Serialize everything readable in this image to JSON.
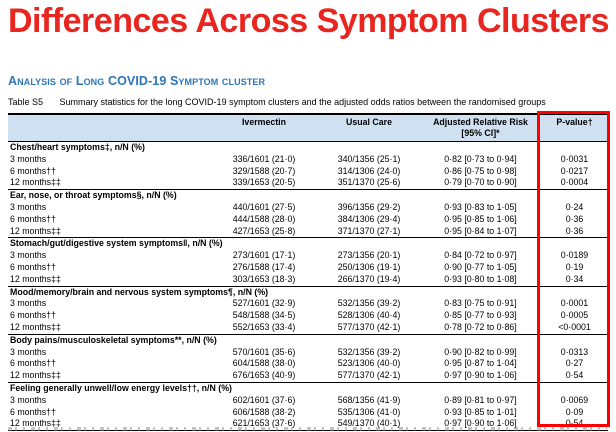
{
  "page": {
    "title": "Differences Across Symptom Clusters",
    "section_heading": "Analysis of Long COVID-19 Symptom cluster",
    "caption_label": "Table S5",
    "caption_text": "Summary statistics for the long COVID-19 symptom clusters and the adjusted odds ratios between the randomised groups"
  },
  "colors": {
    "title_red": "#e8251f",
    "heading_blue": "#2e75b6",
    "header_row_bg": "#cfe1f1",
    "highlight_box_red": "#fe0000"
  },
  "table": {
    "columns": [
      "",
      "Ivermectin",
      "Usual Care",
      "Adjusted Relative Risk [95% CI]*",
      "P-value†"
    ],
    "sections": [
      {
        "label": "Chest/heart symptoms‡, n/N (%)",
        "rows": [
          {
            "label": "3 months",
            "ivermectin": "336/1601 (21·0)",
            "usual_care": "340/1356 (25·1)",
            "arr": "0·82 [0·73 to 0·94]",
            "p": "0·0031"
          },
          {
            "label": "6 months††",
            "ivermectin": "329/1588 (20·7)",
            "usual_care": "314/1306 (24·0)",
            "arr": "0·86 [0·75 to 0·98]",
            "p": "0·0217"
          },
          {
            "label": "12 months‡‡",
            "ivermectin": "339/1653 (20·5)",
            "usual_care": "351/1370 (25·6)",
            "arr": "0·79 [0·70 to 0·90]",
            "p": "0·0004"
          }
        ]
      },
      {
        "label": "Ear, nose, or throat symptoms§, n/N (%)",
        "rows": [
          {
            "label": "3 months",
            "ivermectin": "440/1601 (27·5)",
            "usual_care": "396/1356 (29·2)",
            "arr": "0·93 [0·83 to 1·05]",
            "p": "0·24"
          },
          {
            "label": "6 months††",
            "ivermectin": "444/1588 (28·0)",
            "usual_care": "384/1306 (29·4)",
            "arr": "0·95 [0·85 to 1·06]",
            "p": "0·36"
          },
          {
            "label": "12 months‡‡",
            "ivermectin": "427/1653 (25·8)",
            "usual_care": "371/1370 (27·1)",
            "arr": "0·95 [0·84 to 1·07]",
            "p": "0·36"
          }
        ]
      },
      {
        "label": "Stomach/gut/digestive system symptoms‖, n/N (%)",
        "rows": [
          {
            "label": "3 months",
            "ivermectin": "273/1601 (17·1)",
            "usual_care": "273/1356 (20·1)",
            "arr": "0·84 [0·72 to 0·97]",
            "p": "0·0189"
          },
          {
            "label": "6 months††",
            "ivermectin": "276/1588 (17·4)",
            "usual_care": "250/1306 (19·1)",
            "arr": "0·90 [0·77 to 1·05]",
            "p": "0·19"
          },
          {
            "label": "12 months‡‡",
            "ivermectin": "303/1653 (18·3)",
            "usual_care": "266/1370 (19·4)",
            "arr": "0·93 [0·80 to 1·08]",
            "p": "0·34"
          }
        ]
      },
      {
        "label": "Mood/memory/brain and nervous system symptoms¶, n/N (%)",
        "rows": [
          {
            "label": "3 months",
            "ivermectin": "527/1601 (32·9)",
            "usual_care": "532/1356 (39·2)",
            "arr": "0·83 [0·75 to 0·91]",
            "p": "0·0001"
          },
          {
            "label": "6 months††",
            "ivermectin": "548/1588 (34·5)",
            "usual_care": "528/1306 (40·4)",
            "arr": "0·85 [0·77 to 0·93]",
            "p": "0·0005"
          },
          {
            "label": "12 months‡‡",
            "ivermectin": "552/1653 (33·4)",
            "usual_care": "577/1370 (42·1)",
            "arr": "0·78 [0·72 to 0·86]",
            "p": "<0·0001"
          }
        ]
      },
      {
        "label": "Body pains/musculoskeletal symptoms**, n/N (%)",
        "rows": [
          {
            "label": "3 months",
            "ivermectin": "570/1601 (35·6)",
            "usual_care": "532/1356 (39·2)",
            "arr": "0·90 [0·82 to 0·99]",
            "p": "0·0313"
          },
          {
            "label": "6 months††",
            "ivermectin": "604/1588 (38·0)",
            "usual_care": "523/1306 (40·0)",
            "arr": "0·95 [0·87 to 1·04]",
            "p": "0·27"
          },
          {
            "label": "12 months‡‡",
            "ivermectin": "676/1653 (40·9)",
            "usual_care": "577/1370 (42·1)",
            "arr": "0·97 [0·90 to 1·06]",
            "p": "0·54"
          }
        ]
      },
      {
        "label": "Feeling generally unwell/low energy levels††, n/N (%)",
        "rows": [
          {
            "label": "3 months",
            "ivermectin": "602/1601 (37·6)",
            "usual_care": "568/1356 (41·9)",
            "arr": "0·89 [0·81 to 0·97]",
            "p": "0·0069"
          },
          {
            "label": "6 months††",
            "ivermectin": "606/1588 (38·2)",
            "usual_care": "535/1306 (41·0)",
            "arr": "0·93 [0·85 to 1·01]",
            "p": "0·09"
          },
          {
            "label": "12 months‡‡",
            "ivermectin": "621/1653 (37·6)",
            "usual_care": "549/1370 (40·1)",
            "arr": "0·97 [0·90 to 1·06]",
            "p": "0·54"
          }
        ]
      }
    ]
  }
}
